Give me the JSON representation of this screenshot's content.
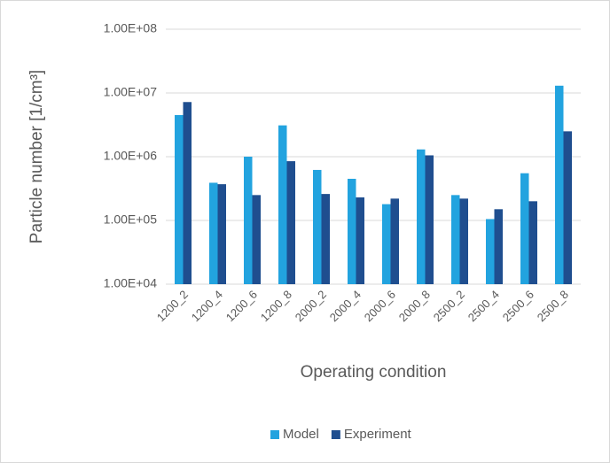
{
  "chart_data": {
    "type": "bar",
    "y_label": "Particle number [1/cm³]",
    "x_label": "Operating condition",
    "categories": [
      "1200_2",
      "1200_4",
      "1200_6",
      "1200_8",
      "2000_2",
      "2000_4",
      "2000_6",
      "2000_8",
      "2500_2",
      "2500_4",
      "2500_6",
      "2500_8"
    ],
    "series": [
      {
        "name": "Model",
        "color": "#22a3df",
        "values": [
          4500000,
          390000,
          1000000,
          3100000,
          620000,
          450000,
          180000,
          1300000,
          250000,
          105000,
          550000,
          13000000
        ]
      },
      {
        "name": "Experiment",
        "color": "#1f4e8f",
        "values": [
          7200000,
          370000,
          250000,
          850000,
          260000,
          230000,
          220000,
          1050000,
          220000,
          150000,
          200000,
          2500000
        ]
      }
    ],
    "log_y": true,
    "ylim": [
      10000,
      100000000
    ],
    "yticks": [
      {
        "value": 10000,
        "label": "1.00E+04"
      },
      {
        "value": 100000,
        "label": "1.00E+05"
      },
      {
        "value": 1000000,
        "label": "1.00E+06"
      },
      {
        "value": 10000000,
        "label": "1.00E+07"
      },
      {
        "value": 100000000,
        "label": "1.00E+08"
      }
    ],
    "grid": true,
    "legend": "bottom"
  }
}
